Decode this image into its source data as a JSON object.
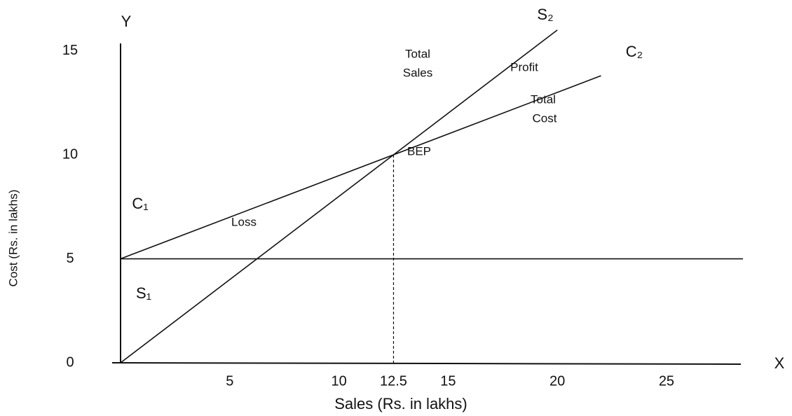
{
  "chart_data": {
    "type": "line",
    "xlabel": "Sales (Rs. in lakhs)",
    "ylabel": "Cost (Rs. in lakhs)",
    "xlim": [
      0,
      28.5
    ],
    "ylim": [
      0,
      16.5
    ],
    "xticks": [
      5,
      10,
      12.5,
      15,
      20,
      25
    ],
    "yticks": [
      0,
      5,
      10,
      15
    ],
    "series": [
      {
        "x": [
          0,
          20
        ],
        "values": [
          0,
          16
        ],
        "color": "#111111"
      },
      {
        "x": [
          0,
          22
        ],
        "values": [
          5,
          13.8
        ],
        "color": "#111111"
      },
      {
        "x": [
          0,
          28.5
        ],
        "values": [
          5,
          5
        ],
        "color": "#111111"
      }
    ],
    "bep": {
      "x": 12.5,
      "y": 10
    },
    "annotations": [
      "Y",
      "X",
      "S₂",
      "C₂",
      "Total",
      "Sales",
      "Profit",
      "Total",
      "Cost",
      "BEP",
      "Loss",
      "C₁",
      "S₁"
    ]
  }
}
